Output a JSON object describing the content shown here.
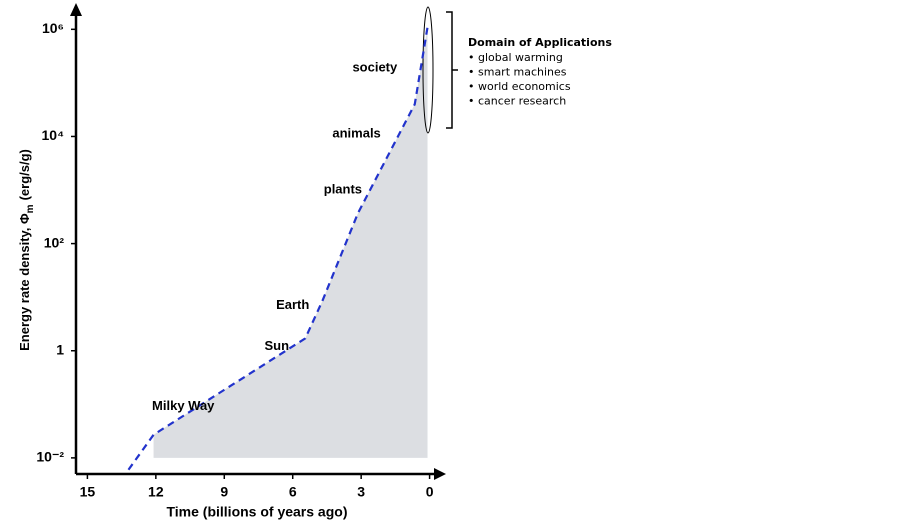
{
  "chart_data": {
    "type": "line",
    "ylabel": [
      "Energy rate density, Φ",
      "m",
      "(erg/s/g)"
    ],
    "xlabel": "Time (billions of years ago)",
    "x": [
      13.2,
      12.1,
      5.45,
      4.7,
      3.14,
      0.65,
      0.09
    ],
    "series": [
      {
        "color": "#2233cc",
        "values": [
          0.006,
          0.027,
          1.7,
          8.5,
          370,
          40000,
          1100000
        ]
      }
    ],
    "area_color": "#dcdee2",
    "xlim": [
      15.5,
      -0.5
    ],
    "xticks": [
      15,
      12,
      9,
      6,
      3,
      0
    ],
    "ylim": [
      0.005,
      2500000
    ],
    "log_y": true,
    "yticks": [
      {
        "value": 0.01,
        "label": "10⁻²"
      },
      1,
      {
        "value": 100,
        "label": "10²"
      },
      {
        "value": 10000,
        "label": "10⁴"
      },
      {
        "value": 1000000,
        "label": "10⁶"
      }
    ],
    "annotations": [
      {
        "text": "Milky Way",
        "x": 10.8,
        "y": 0.09
      },
      {
        "text": "Sun",
        "x": 6.7,
        "y": 1.2
      },
      {
        "text": "Earth",
        "x": 6.0,
        "y": 7
      },
      {
        "text": "plants",
        "x": 3.8,
        "y": 1000
      },
      {
        "text": "animals",
        "x": 3.2,
        "y": 11000
      },
      {
        "text": "society",
        "x": 2.4,
        "y": 190000
      }
    ],
    "domain": {
      "title": "Domain of Applications",
      "items": [
        "global warming",
        "smart machines",
        "world economics",
        "cancer research"
      ]
    }
  }
}
